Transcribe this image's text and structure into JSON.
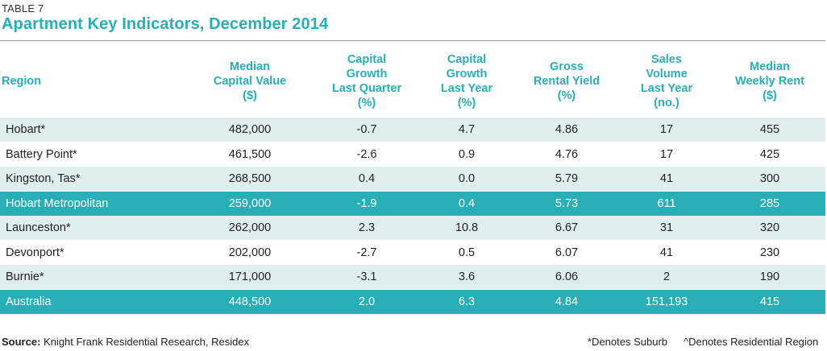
{
  "table_label": "TABLE 7",
  "title": "Apartment Key Indicators, December 2014",
  "columns": [
    {
      "lines": [
        "Region"
      ]
    },
    {
      "lines": [
        "Median",
        "Capital Value",
        "($)"
      ]
    },
    {
      "lines": [
        "Capital",
        "Growth",
        "Last Quarter",
        "(%)"
      ]
    },
    {
      "lines": [
        "Capital",
        "Growth",
        "Last Year",
        "(%)"
      ]
    },
    {
      "lines": [
        "Gross",
        "Rental Yield",
        "(%)"
      ]
    },
    {
      "lines": [
        "Sales",
        "Volume",
        "Last Year",
        "(no.)"
      ]
    },
    {
      "lines": [
        "Median",
        "Weekly Rent",
        "($)"
      ]
    }
  ],
  "rows": [
    {
      "region": "Hobart*",
      "median_value": "482,000",
      "growth_quarter": "-0.7",
      "growth_year": "4.7",
      "rental_yield": "4.86",
      "sales_volume": "17",
      "weekly_rent": "455",
      "style": "band"
    },
    {
      "region": "Battery Point*",
      "median_value": "461,500",
      "growth_quarter": "-2.6",
      "growth_year": "0.9",
      "rental_yield": "4.76",
      "sales_volume": "17",
      "weekly_rent": "425",
      "style": "plain"
    },
    {
      "region": "Kingston, Tas*",
      "median_value": "268,500",
      "growth_quarter": "0.4",
      "growth_year": "0.0",
      "rental_yield": "5.79",
      "sales_volume": "41",
      "weekly_rent": "300",
      "style": "band"
    },
    {
      "region": "Hobart Metropolitan",
      "median_value": "259,000",
      "growth_quarter": "-1.9",
      "growth_year": "0.4",
      "rental_yield": "5.73",
      "sales_volume": "611",
      "weekly_rent": "285",
      "style": "highlight"
    },
    {
      "region": "Launceston*",
      "median_value": "262,000",
      "growth_quarter": "2.3",
      "growth_year": "10.8",
      "rental_yield": "6.67",
      "sales_volume": "31",
      "weekly_rent": "320",
      "style": "band"
    },
    {
      "region": "Devonport*",
      "median_value": "202,000",
      "growth_quarter": "-2.7",
      "growth_year": "0.5",
      "rental_yield": "6.07",
      "sales_volume": "41",
      "weekly_rent": "230",
      "style": "plain"
    },
    {
      "region": "Burnie*",
      "median_value": "171,000",
      "growth_quarter": "-3.1",
      "growth_year": "3.6",
      "rental_yield": "6.06",
      "sales_volume": "2",
      "weekly_rent": "190",
      "style": "band"
    },
    {
      "region": "Australia",
      "median_value": "448,500",
      "growth_quarter": "2.0",
      "growth_year": "6.3",
      "rental_yield": "4.84",
      "sales_volume": "151,193",
      "weekly_rent": "415",
      "style": "highlight"
    }
  ],
  "footer": {
    "source_label": "Source:",
    "source_text": "Knight Frank Residential Research, Residex",
    "note_suburb": "*Denotes Suburb",
    "note_region": "^Denotes Residential Region"
  },
  "colors": {
    "accent": "#2aaeb5",
    "band": "#e1eef0",
    "highlight_text": "#ffffff"
  }
}
